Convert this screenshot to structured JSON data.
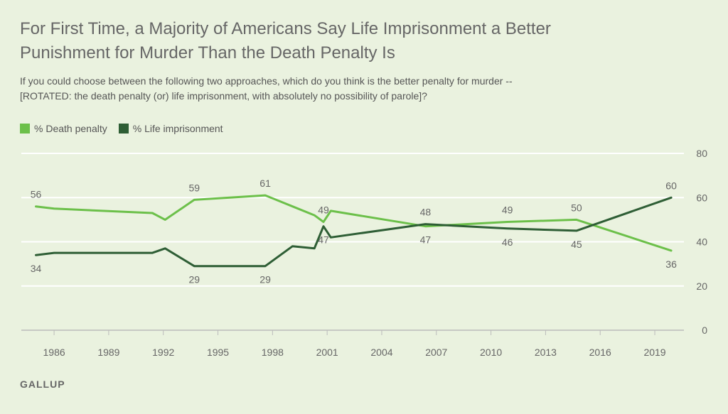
{
  "header": {
    "title": "For First Time, a Majority of Americans Say Life Imprisonment a Better Punishment for Murder Than the Death Penalty Is",
    "subtitle": "If you could choose between the following two approaches, which do you think is the better penalty for murder -- [ROTATED: the death penalty (or) life imprisonment, with absolutely no possibility of parole]?"
  },
  "footer": {
    "source": "GALLUP"
  },
  "colors": {
    "death": "#6cc04a",
    "life": "#2e5e35",
    "grid": "#ffffff",
    "axis": "#bbbbbb",
    "text": "#666666",
    "background": "#eaf2df"
  },
  "chart_data": {
    "type": "line",
    "title": "For First Time, a Majority of Americans Say Life Imprisonment a Better Punishment for Murder Than the Death Penalty Is",
    "xlabel": "",
    "ylabel": "",
    "xlim": [
      1984.2,
      2020.6
    ],
    "ylim": [
      0,
      80
    ],
    "x_ticks": [
      "1986",
      "1989",
      "1992",
      "1995",
      "1998",
      "2001",
      "2004",
      "2007",
      "2010",
      "2013",
      "2016",
      "2019"
    ],
    "y_ticks": [
      "0",
      "20",
      "40",
      "60",
      "80"
    ],
    "legend_position": "top-left",
    "grid": true,
    "series": [
      {
        "name": "% Death penalty",
        "points": [
          {
            "x": 1985.0,
            "y": 56,
            "label": "56"
          },
          {
            "x": 1986.0,
            "y": 55
          },
          {
            "x": 1991.4,
            "y": 53
          },
          {
            "x": 1992.1,
            "y": 50
          },
          {
            "x": 1993.7,
            "y": 59,
            "label": "59"
          },
          {
            "x": 1997.6,
            "y": 61,
            "label": "61"
          },
          {
            "x": 1999.1,
            "y": 56
          },
          {
            "x": 2000.3,
            "y": 52
          },
          {
            "x": 2000.8,
            "y": 49,
            "label": "49"
          },
          {
            "x": 2001.2,
            "y": 54
          },
          {
            "x": 2006.4,
            "y": 47,
            "label": "47"
          },
          {
            "x": 2010.9,
            "y": 49,
            "label": "49"
          },
          {
            "x": 2014.7,
            "y": 50,
            "label": "50"
          },
          {
            "x": 2019.9,
            "y": 36,
            "label": "36"
          }
        ]
      },
      {
        "name": "% Life imprisonment",
        "points": [
          {
            "x": 1985.0,
            "y": 34,
            "label": "34"
          },
          {
            "x": 1986.0,
            "y": 35
          },
          {
            "x": 1991.4,
            "y": 35
          },
          {
            "x": 1992.1,
            "y": 37
          },
          {
            "x": 1993.7,
            "y": 29,
            "label": "29"
          },
          {
            "x": 1997.6,
            "y": 29,
            "label": "29"
          },
          {
            "x": 1999.1,
            "y": 38
          },
          {
            "x": 2000.3,
            "y": 37
          },
          {
            "x": 2000.8,
            "y": 47,
            "label": "47"
          },
          {
            "x": 2001.2,
            "y": 42
          },
          {
            "x": 2006.4,
            "y": 48,
            "label": "48"
          },
          {
            "x": 2010.9,
            "y": 46,
            "label": "46"
          },
          {
            "x": 2014.7,
            "y": 45,
            "label": "45"
          },
          {
            "x": 2019.9,
            "y": 60,
            "label": "60"
          }
        ]
      }
    ]
  }
}
